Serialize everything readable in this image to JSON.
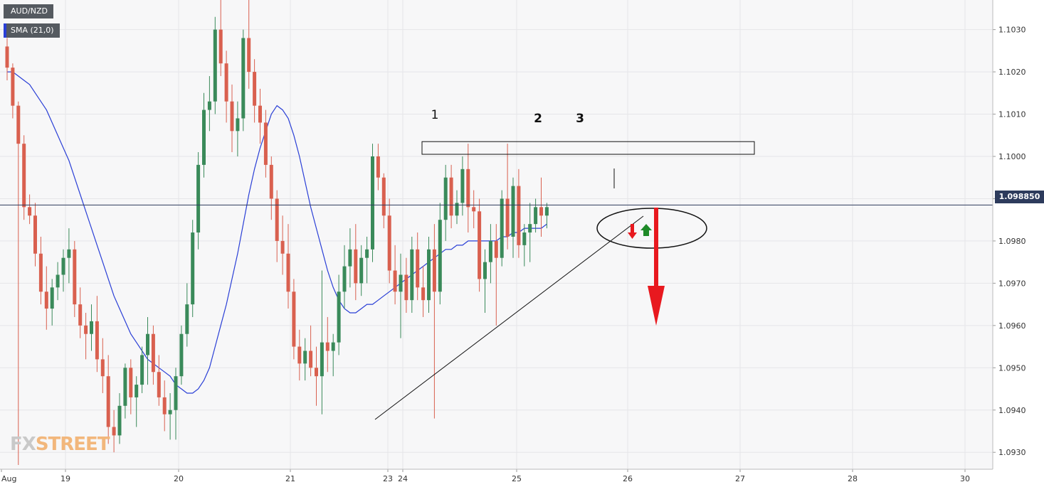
{
  "legend": {
    "pair": "AUD/NZD",
    "indicator": "SMA (21,0)"
  },
  "logo": {
    "part1": "FX",
    "part2": "STREET"
  },
  "current_price_label": "1.098850",
  "colors": {
    "up": "#3a8a5a",
    "down": "#d9604f",
    "sma": "#2a3fd6",
    "plot_bg": "#f7f7f8",
    "grid": "#e6e6e9",
    "price_line": "#2d3b5c",
    "annotation_red": "#e8191f",
    "annotation_green": "#1e8a28"
  },
  "annotations": {
    "peak_labels": [
      "1",
      "2",
      "3"
    ]
  },
  "chart_data": {
    "type": "candlestick",
    "symbol": "AUD/NZD",
    "timeframe": "hourly",
    "title": "",
    "ylim": [
      1.0926,
      1.1037
    ],
    "y_ticks": [
      "1.0930",
      "1.0940",
      "1.0950",
      "1.0960",
      "1.0970",
      "1.0980",
      "1.0990",
      "1.1000",
      "1.1010",
      "1.1020",
      "1.1030"
    ],
    "x_ticks": [
      "Aug",
      "19",
      "20",
      "21",
      "23",
      "24",
      "25",
      "26",
      "27",
      "28",
      "30"
    ],
    "last_price": 1.09885,
    "resistance_zone": [
      1.10005,
      1.10035
    ],
    "sma_period": 21,
    "candles_ohlc": [
      [
        1.1026,
        1.1028,
        1.1018,
        1.1021
      ],
      [
        1.1021,
        1.1022,
        1.1009,
        1.1012
      ],
      [
        1.1012,
        1.1013,
        1.0927,
        1.1003
      ],
      [
        1.1003,
        1.1005,
        1.0985,
        1.0988
      ],
      [
        1.0988,
        1.0991,
        1.0984,
        1.0986
      ],
      [
        1.0986,
        1.0989,
        1.0974,
        1.0977
      ],
      [
        1.0977,
        1.0981,
        1.0965,
        1.0968
      ],
      [
        1.0968,
        1.0974,
        1.0959,
        1.0964
      ],
      [
        1.0964,
        1.0971,
        1.096,
        1.0969
      ],
      [
        1.0969,
        1.0975,
        1.0966,
        1.0972
      ],
      [
        1.0972,
        1.0978,
        1.0968,
        1.0976
      ],
      [
        1.0976,
        1.0983,
        1.097,
        1.0978
      ],
      [
        1.0978,
        1.098,
        1.0962,
        1.0965
      ],
      [
        1.0965,
        1.0969,
        1.0957,
        1.096
      ],
      [
        1.096,
        1.0963,
        1.0952,
        1.0958
      ],
      [
        1.0958,
        1.0965,
        1.0954,
        1.0961
      ],
      [
        1.0961,
        1.0967,
        1.0949,
        1.0952
      ],
      [
        1.0952,
        1.0957,
        1.0944,
        1.0948
      ],
      [
        1.0948,
        1.0953,
        1.0932,
        1.0936
      ],
      [
        1.0936,
        1.094,
        1.093,
        1.0934
      ],
      [
        1.0934,
        1.0944,
        1.0932,
        1.0941
      ],
      [
        1.0941,
        1.0951,
        1.0938,
        1.095
      ],
      [
        1.095,
        1.0952,
        1.0939,
        1.0943
      ],
      [
        1.0943,
        1.0948,
        1.0936,
        1.0946
      ],
      [
        1.0946,
        1.0955,
        1.0944,
        1.0953
      ],
      [
        1.0953,
        1.0962,
        1.0946,
        1.0958
      ],
      [
        1.0958,
        1.096,
        1.0946,
        1.0949
      ],
      [
        1.0949,
        1.0953,
        1.0941,
        1.0943
      ],
      [
        1.0943,
        1.0947,
        1.0935,
        1.0939
      ],
      [
        1.0939,
        1.0944,
        1.0933,
        1.094
      ],
      [
        1.094,
        1.095,
        1.0933,
        1.0948
      ],
      [
        1.0948,
        1.096,
        1.0946,
        1.0958
      ],
      [
        1.0958,
        1.097,
        1.0955,
        1.0965
      ],
      [
        1.0965,
        1.0985,
        1.0962,
        1.0982
      ],
      [
        1.0982,
        1.1001,
        1.0978,
        1.0998
      ],
      [
        1.0998,
        1.1015,
        1.0995,
        1.1011
      ],
      [
        1.1011,
        1.1019,
        1.1006,
        1.1013
      ],
      [
        1.1013,
        1.1033,
        1.101,
        1.103
      ],
      [
        1.103,
        1.1037,
        1.1019,
        1.1022
      ],
      [
        1.1022,
        1.1025,
        1.1008,
        1.1013
      ],
      [
        1.1013,
        1.1017,
        1.1001,
        1.1006
      ],
      [
        1.1006,
        1.1013,
        1.1,
        1.1009
      ],
      [
        1.1009,
        1.103,
        1.1006,
        1.1028
      ],
      [
        1.1028,
        1.1037,
        1.1016,
        1.102
      ],
      [
        1.102,
        1.1023,
        1.1008,
        1.1012
      ],
      [
        1.1012,
        1.1016,
        1.1003,
        1.1008
      ],
      [
        1.1008,
        1.1011,
        1.0995,
        1.0998
      ],
      [
        1.0998,
        1.1,
        1.0985,
        1.099
      ],
      [
        1.099,
        1.0992,
        1.0975,
        1.098
      ],
      [
        1.098,
        1.0986,
        1.0972,
        1.0977
      ],
      [
        1.0977,
        1.0984,
        1.0964,
        1.0968
      ],
      [
        1.0968,
        1.0971,
        1.0952,
        1.0955
      ],
      [
        1.0955,
        1.0959,
        1.0947,
        1.0951
      ],
      [
        1.0951,
        1.0957,
        1.0947,
        1.0954
      ],
      [
        1.0954,
        1.096,
        1.0948,
        1.095
      ],
      [
        1.095,
        1.0955,
        1.0941,
        1.0948
      ],
      [
        1.0948,
        1.0973,
        1.0939,
        1.0956
      ],
      [
        1.0956,
        1.0962,
        1.0949,
        1.0954
      ],
      [
        1.0954,
        1.0958,
        1.0948,
        1.0956
      ],
      [
        1.0956,
        1.0972,
        1.0953,
        1.0968
      ],
      [
        1.0968,
        1.0979,
        1.0964,
        1.0974
      ],
      [
        1.0974,
        1.0983,
        1.0969,
        1.0978
      ],
      [
        1.0978,
        1.0984,
        1.0966,
        1.097
      ],
      [
        1.097,
        1.0979,
        1.0967,
        1.0976
      ],
      [
        1.0976,
        1.0981,
        1.097,
        1.0978
      ],
      [
        1.0978,
        1.1003,
        1.0975,
        1.1
      ],
      [
        1.1,
        1.1003,
        1.0992,
        1.0995
      ],
      [
        1.0995,
        1.0996,
        1.0983,
        1.0986
      ],
      [
        1.0986,
        1.099,
        1.097,
        1.0973
      ],
      [
        1.0973,
        1.0979,
        1.0965,
        1.0968
      ],
      [
        1.0968,
        1.0977,
        1.0957,
        1.0972
      ],
      [
        1.0972,
        1.0976,
        1.0963,
        1.0966
      ],
      [
        1.0966,
        1.0981,
        1.0963,
        1.0978
      ],
      [
        1.0978,
        1.0982,
        1.0966,
        1.0969
      ],
      [
        1.0969,
        1.0974,
        1.0962,
        1.0966
      ],
      [
        1.0966,
        1.0981,
        1.0963,
        1.0978
      ],
      [
        1.0978,
        1.0984,
        1.0938,
        1.0968
      ],
      [
        1.0968,
        1.0989,
        1.0965,
        1.0985
      ],
      [
        1.0985,
        1.0998,
        1.098,
        1.0995
      ],
      [
        1.0995,
        1.0998,
        1.0983,
        1.0986
      ],
      [
        1.0986,
        1.0992,
        1.0984,
        1.0989
      ],
      [
        1.0989,
        1.1,
        1.0986,
        1.0997
      ],
      [
        1.0997,
        1.1003,
        1.0982,
        1.0988
      ],
      [
        1.0988,
        1.0992,
        1.0983,
        1.0987
      ],
      [
        1.0987,
        1.099,
        1.0968,
        1.0971
      ],
      [
        1.0971,
        1.0978,
        1.0963,
        1.0975
      ],
      [
        1.0975,
        1.0984,
        1.097,
        1.098
      ],
      [
        1.098,
        1.0984,
        1.096,
        1.0976
      ],
      [
        1.0976,
        1.0992,
        1.0974,
        1.099
      ],
      [
        1.099,
        1.1003,
        1.0978,
        1.0981
      ],
      [
        1.0981,
        1.0995,
        1.0976,
        1.0993
      ],
      [
        1.0993,
        1.0997,
        1.0976,
        1.0979
      ],
      [
        1.0979,
        1.0984,
        1.0974,
        1.0982
      ],
      [
        1.0982,
        1.0989,
        1.0975,
        1.0984
      ],
      [
        1.0984,
        1.099,
        1.0982,
        1.0988
      ],
      [
        1.0988,
        1.0995,
        1.0981,
        1.0986
      ],
      [
        1.0986,
        1.0989,
        1.0983,
        1.0988
      ]
    ],
    "sma_values": [
      1.102,
      1.102,
      1.1019,
      1.1018,
      1.1017,
      1.1015,
      1.1013,
      1.1011,
      1.1008,
      1.1005,
      1.1002,
      1.0999,
      1.0995,
      1.0991,
      1.0987,
      1.0983,
      1.0979,
      1.0975,
      1.0971,
      1.0967,
      1.0964,
      1.0961,
      1.0958,
      1.0956,
      1.0954,
      1.0952,
      1.0951,
      1.095,
      1.0949,
      1.0948,
      1.0946,
      1.0945,
      1.0944,
      1.0944,
      1.0945,
      1.0947,
      1.095,
      1.0955,
      1.096,
      1.0965,
      1.0971,
      1.0977,
      1.0984,
      1.0991,
      1.0997,
      1.1002,
      1.1006,
      1.101,
      1.1012,
      1.1011,
      1.1009,
      1.1005,
      1.1,
      1.0994,
      1.0988,
      1.0983,
      1.0978,
      1.0973,
      1.0969,
      1.0966,
      1.0964,
      1.0963,
      1.0963,
      1.0964,
      1.0965,
      1.0965,
      1.0966,
      1.0967,
      1.0968,
      1.0969,
      1.097,
      1.0971,
      1.0972,
      1.0973,
      1.0974,
      1.0975,
      1.0976,
      1.0977,
      1.0978,
      1.0978,
      1.0979,
      1.0979,
      1.098,
      1.098,
      1.098,
      1.098,
      1.098,
      1.098,
      1.0981,
      1.0981,
      1.0982,
      1.0982,
      1.0983,
      1.0983,
      1.0983,
      1.0983,
      1.0984
    ],
    "trendline": {
      "from": [
        53,
        1.0937
      ],
      "to": [
        90,
        1.0985
      ]
    }
  }
}
